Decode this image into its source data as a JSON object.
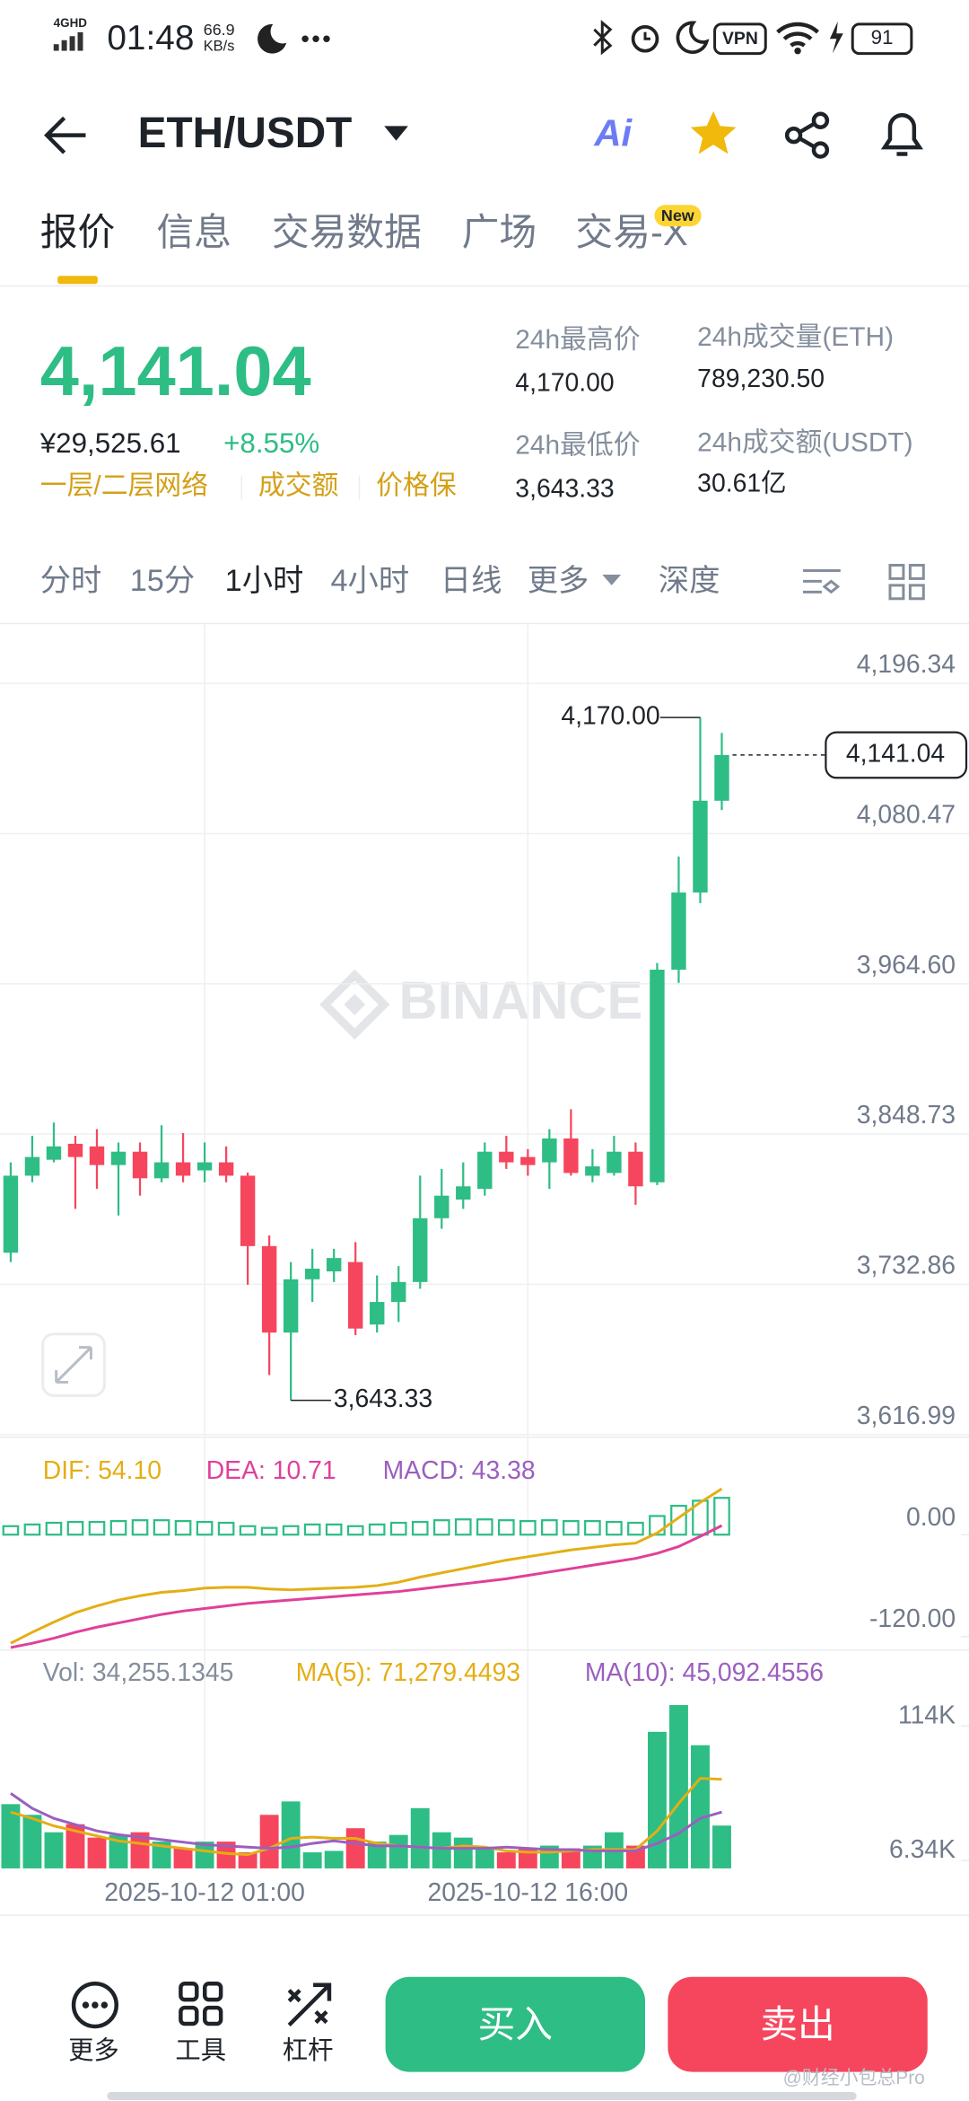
{
  "status_bar": {
    "network": "4GHD",
    "time": "01:48",
    "speed": "66.9",
    "speed_unit": "KB/s",
    "vpn": "VPN",
    "battery": "91"
  },
  "header": {
    "pair": "ETH/USDT",
    "ai": "Ai"
  },
  "tabs": {
    "items": [
      "报价",
      "信息",
      "交易数据",
      "广场",
      "交易-X"
    ],
    "active": 0,
    "badge": "New"
  },
  "ticker": {
    "price": "4,141.04",
    "cny": "¥29,525.61",
    "change": "+8.55%",
    "tags": [
      "一层/二层网络",
      "成交额",
      "价格保"
    ],
    "stats": [
      {
        "label": "24h最高价",
        "value": "4,170.00"
      },
      {
        "label": "24h成交量(ETH)",
        "value": "789,230.50"
      },
      {
        "label": "24h最低价",
        "value": "3,643.33"
      },
      {
        "label": "24h成交额(USDT)",
        "value": "30.61亿"
      }
    ]
  },
  "intervals": {
    "items": [
      "分时",
      "15分",
      "1小时",
      "4小时",
      "日线",
      "更多",
      "深度"
    ],
    "active": 2
  },
  "watermark": "BINANCE",
  "chart_data": [
    {
      "type": "candlestick",
      "up_color": "#2ebd85",
      "down_color": "#f6465d",
      "grid": true,
      "categories": [
        null,
        null,
        null,
        null,
        null,
        null,
        null,
        null,
        null,
        "2025-10-12 01:00",
        null,
        null,
        null,
        null,
        null,
        null,
        null,
        null,
        null,
        null,
        null,
        null,
        null,
        null,
        "2025-10-12 16:00",
        null,
        null,
        null,
        null,
        null,
        null,
        null,
        null,
        null
      ],
      "open": [
        3757.2,
        3816.6,
        3828.9,
        3841.2,
        3839.2,
        3824.8,
        3835.1,
        3814.6,
        3826.9,
        3820.7,
        3826.9,
        3816.6,
        3762.3,
        3695.6,
        3736.7,
        3742.8,
        3750.0,
        3701.8,
        3719.2,
        3734.6,
        3783.8,
        3798.2,
        3806.4,
        3835.1,
        3831.0,
        3826.9,
        3845.3,
        3816.6,
        3818.7,
        3835.1,
        3811.5,
        3975.5,
        4035.0,
        4105.8
      ],
      "high": [
        3826.9,
        3847.4,
        3857.6,
        3847.4,
        3852.5,
        3842.2,
        3842.2,
        3855.5,
        3849.5,
        3842.2,
        3839.2,
        3819.0,
        3770.5,
        3750.0,
        3760.2,
        3760.2,
        3765.4,
        3739.7,
        3746.9,
        3816.6,
        3821.8,
        3826.9,
        3842.2,
        3847.4,
        3837.1,
        3852.5,
        3867.9,
        3837.1,
        3847.4,
        3842.2,
        3980.7,
        4062.7,
        4170.0,
        4158.1
      ],
      "low": [
        3750.0,
        3811.5,
        3826.9,
        3791.0,
        3806.4,
        3785.9,
        3801.2,
        3811.5,
        3811.5,
        3811.5,
        3811.5,
        3732.5,
        3662.8,
        3643.33,
        3719.2,
        3734.6,
        3693.6,
        3695.6,
        3703.8,
        3729.4,
        3775.6,
        3791.0,
        3801.2,
        3821.8,
        3816.6,
        3806.4,
        3816.6,
        3811.5,
        3816.6,
        3794.1,
        3809.4,
        3965.3,
        4026.8,
        4098.6
      ],
      "close": [
        3816.6,
        3831.0,
        3839.2,
        3831.0,
        3824.8,
        3835.1,
        3814.6,
        3826.9,
        3816.6,
        3826.9,
        3816.6,
        3762.3,
        3695.6,
        3736.7,
        3744.9,
        3753.1,
        3698.7,
        3719.2,
        3734.6,
        3783.8,
        3801.2,
        3808.4,
        3835.1,
        3826.9,
        3824.8,
        3845.3,
        3818.7,
        3823.8,
        3835.1,
        3808.4,
        3975.5,
        4035.0,
        4105.8,
        4141.04
      ],
      "ylim": [
        3616,
        4242
      ],
      "yticks": [
        {
          "value": 4196.34,
          "label": "4,196.34"
        },
        {
          "value": 4080.47,
          "label": "4,080.47"
        },
        {
          "value": 3964.6,
          "label": "3,964.60"
        },
        {
          "value": 3848.73,
          "label": "3,848.73"
        },
        {
          "value": 3732.86,
          "label": "3,732.86"
        },
        {
          "value": 3616.99,
          "label": "3,616.99"
        }
      ],
      "high_label": "4,170.00",
      "low_label": "3,643.33",
      "last_label": "4,141.04"
    },
    {
      "type": "macd",
      "ylim": [
        -136,
        96
      ],
      "yticks": [
        {
          "value": 0,
          "label": "0.00"
        },
        {
          "value": -120,
          "label": "-120.00"
        }
      ],
      "series": [
        {
          "name": "DIF",
          "legend": "DIF: 54.10",
          "color": "#e4ae14",
          "values": [
            -128,
            -115,
            -103,
            -92,
            -84,
            -77,
            -72,
            -68,
            -66,
            -63,
            -62,
            -62,
            -64,
            -65,
            -64,
            -63,
            -62,
            -60,
            -56,
            -50,
            -45,
            -40,
            -35,
            -30,
            -26,
            -22,
            -18,
            -15,
            -12,
            -10,
            2,
            20,
            38,
            54.1
          ]
        },
        {
          "name": "DEA",
          "legend": "DEA: 10.71",
          "color": "#e0409a",
          "values": [
            -133,
            -128,
            -122,
            -115,
            -109,
            -104,
            -99,
            -94,
            -90,
            -87,
            -84,
            -81,
            -79,
            -77,
            -75,
            -73,
            -71,
            -69,
            -67,
            -64,
            -61,
            -58,
            -55,
            -52,
            -48,
            -44,
            -40,
            -36,
            -32,
            -28,
            -22,
            -14,
            -2,
            10.71
          ]
        },
        {
          "name": "MACD",
          "legend": "MACD: 43.38",
          "color": "#9b5fc0",
          "bar_color": "#2ebd85",
          "values": [
            10,
            12,
            14,
            15,
            15,
            16,
            17,
            17,
            16,
            15,
            14,
            10,
            8,
            10,
            12,
            12,
            10,
            12,
            14,
            15,
            17,
            18,
            18,
            17,
            16,
            17,
            16,
            16,
            15,
            14,
            22,
            34,
            40,
            43.38
          ]
        }
      ]
    },
    {
      "type": "volume",
      "legend": "Vol: 34,255.1345",
      "legend_color": "#848e9c",
      "ylim": [
        0,
        150000
      ],
      "yticks": [
        {
          "value": 114000,
          "label": "114K"
        },
        {
          "value": 6340,
          "label": "6.34K"
        }
      ],
      "values": [
        51400,
        42840,
        28900,
        35340,
        24630,
        26780,
        28900,
        21420,
        16070,
        21420,
        21420,
        12850,
        42840,
        53550,
        12850,
        14000,
        32130,
        21420,
        26780,
        48200,
        28900,
        24630,
        16070,
        12850,
        16070,
        18210,
        16070,
        18210,
        28900,
        18210,
        109240,
        130660,
        98530,
        34255.1345
      ],
      "series": [
        {
          "name": "MA(5)",
          "legend": "MA(5): 71,279.4493",
          "color": "#e4ae14",
          "values": [
            45000,
            40000,
            34000,
            30000,
            26000,
            22000,
            20000,
            18000,
            16000,
            14000,
            12000,
            11000,
            16000,
            24000,
            25000,
            24000,
            24000,
            20000,
            18000,
            17000,
            16000,
            18000,
            17000,
            14000,
            13000,
            13000,
            14000,
            15000,
            15000,
            15000,
            30000,
            52000,
            72000,
            71279.4493
          ]
        },
        {
          "name": "MA(10)",
          "legend": "MA(10): 45,092.4556",
          "color": "#9b5fc0",
          "values": [
            60000,
            48000,
            40000,
            35000,
            30000,
            27000,
            25000,
            23000,
            21000,
            19000,
            18000,
            17000,
            16000,
            17000,
            20000,
            22000,
            20000,
            18000,
            18000,
            17000,
            16000,
            16000,
            16000,
            17000,
            16000,
            15000,
            15000,
            14000,
            14000,
            14000,
            20000,
            28000,
            40000,
            45092.4556
          ]
        }
      ]
    }
  ],
  "bottom_bar": {
    "tools": [
      "更多",
      "工具",
      "杠杆"
    ],
    "buy": "买入",
    "sell": "卖出"
  },
  "credit": "@财经小包总Pro"
}
